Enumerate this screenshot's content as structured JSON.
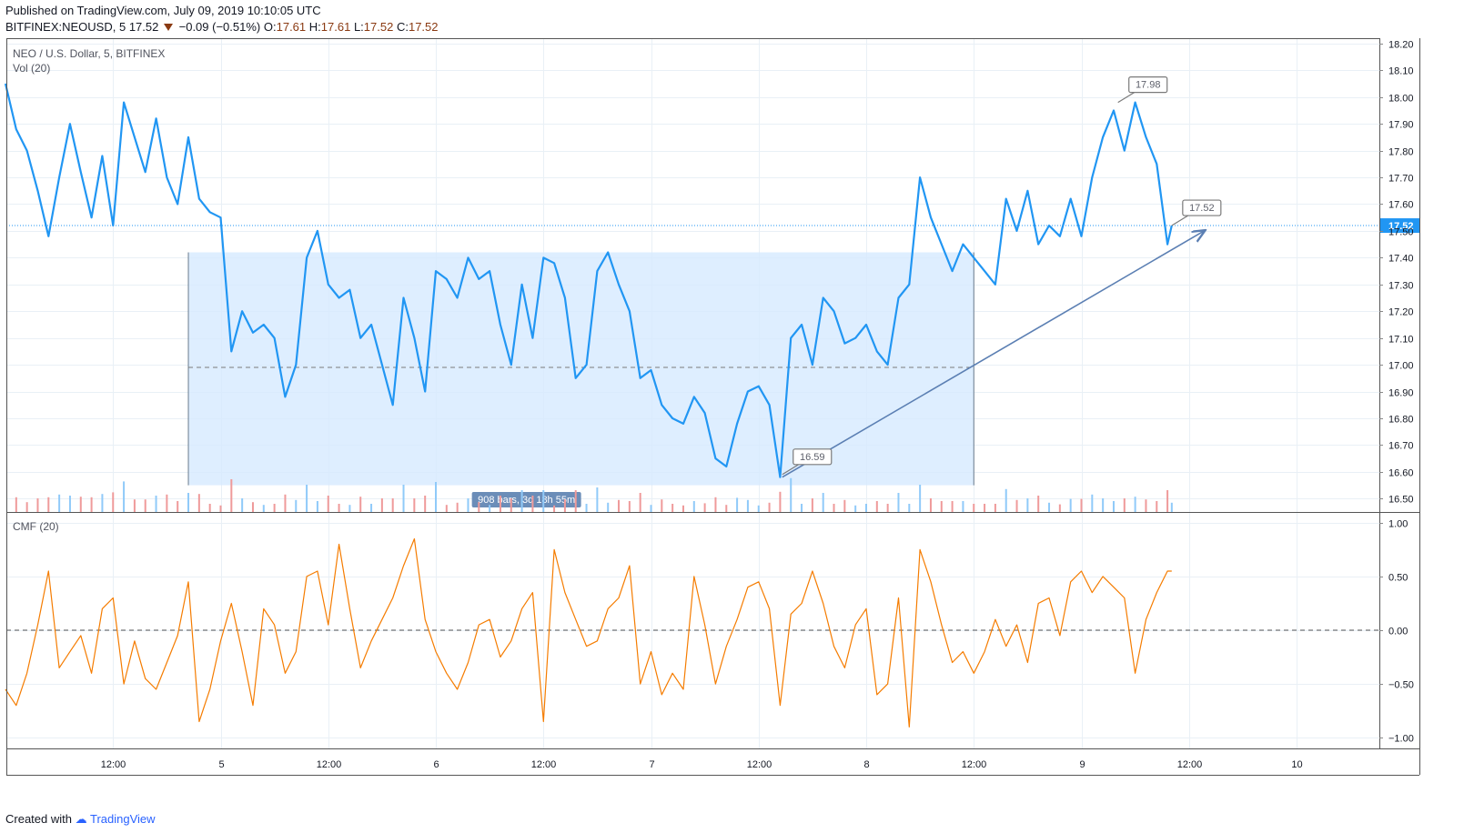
{
  "header": {
    "published": "Published on TradingView.com, July 09, 2019 10:10:05 UTC",
    "symbol_line": "BITFINEX:NEOUSD, 5",
    "last": "17.52",
    "change": "−0.09 (−0.51%)",
    "open_label": "O:",
    "open": "17.61",
    "high_label": "H:",
    "high": "17.61",
    "low_label": "L:",
    "low": "17.52",
    "close_label": "C:",
    "close": "17.52"
  },
  "footer": {
    "created_with": "Created with",
    "brand": "TradingView"
  },
  "colors": {
    "price_line": "#2196f3",
    "cmf_line": "#f57c00",
    "range_fill": "#d6eaff",
    "trendline": "#5b7fb3",
    "vol_up": "#90caf9",
    "vol_down": "#ef9a9a",
    "grid": "#e9f0f6"
  },
  "chart_data": [
    {
      "type": "line",
      "title": "NEO / U.S. Dollar, 5, BITFINEX",
      "indicator_label": "Vol (20)",
      "x_ticks": [
        "12:00",
        "5",
        "12:00",
        "6",
        "12:00",
        "7",
        "12:00",
        "8",
        "12:00",
        "9",
        "12:00",
        "10"
      ],
      "ylim": [
        16.45,
        18.22
      ],
      "y_ticks": [
        "18.20",
        "18.10",
        "18.00",
        "17.90",
        "17.80",
        "17.70",
        "17.60",
        "17.50",
        "17.40",
        "17.30",
        "17.20",
        "17.10",
        "17.00",
        "16.90",
        "16.80",
        "16.70",
        "16.60",
        "16.50"
      ],
      "last_price": 17.52,
      "last_price_label": "17.52",
      "series": [
        {
          "name": "NEOUSD",
          "x_days": [
            4.0,
            4.05,
            4.1,
            4.15,
            4.2,
            4.25,
            4.3,
            4.35,
            4.4,
            4.45,
            4.5,
            4.55,
            4.6,
            4.65,
            4.7,
            4.75,
            4.8,
            4.85,
            4.9,
            4.95,
            5.0,
            5.05,
            5.1,
            5.15,
            5.2,
            5.25,
            5.3,
            5.35,
            5.4,
            5.45,
            5.5,
            5.55,
            5.6,
            5.65,
            5.7,
            5.75,
            5.8,
            5.85,
            5.9,
            5.95,
            6.0,
            6.05,
            6.1,
            6.15,
            6.2,
            6.25,
            6.3,
            6.35,
            6.4,
            6.45,
            6.5,
            6.55,
            6.6,
            6.65,
            6.7,
            6.75,
            6.8,
            6.85,
            6.9,
            6.95,
            7.0,
            7.05,
            7.1,
            7.15,
            7.2,
            7.25,
            7.3,
            7.35,
            7.4,
            7.45,
            7.5,
            7.55,
            7.6,
            7.65,
            7.7,
            7.75,
            7.8,
            7.85,
            7.9,
            7.95,
            8.0,
            8.05,
            8.1,
            8.15,
            8.2,
            8.25,
            8.3,
            8.35,
            8.4,
            8.45,
            8.5,
            8.55,
            8.6,
            8.65,
            8.7,
            8.75,
            8.8,
            8.85,
            8.9,
            8.95,
            9.0,
            9.05,
            9.1,
            9.15,
            9.2,
            9.25,
            9.3,
            9.35,
            9.4,
            9.42
          ],
          "values": [
            18.05,
            17.88,
            17.8,
            17.65,
            17.48,
            17.7,
            17.9,
            17.72,
            17.55,
            17.78,
            17.52,
            17.98,
            17.85,
            17.72,
            17.92,
            17.7,
            17.6,
            17.85,
            17.62,
            17.57,
            17.55,
            17.05,
            17.2,
            17.12,
            17.15,
            17.1,
            16.88,
            17.0,
            17.4,
            17.5,
            17.3,
            17.25,
            17.28,
            17.1,
            17.15,
            17.0,
            16.85,
            17.25,
            17.1,
            16.9,
            17.35,
            17.32,
            17.25,
            17.4,
            17.32,
            17.35,
            17.15,
            17.0,
            17.3,
            17.1,
            17.4,
            17.38,
            17.25,
            16.95,
            17.0,
            17.35,
            17.42,
            17.3,
            17.2,
            16.95,
            16.98,
            16.85,
            16.8,
            16.78,
            16.88,
            16.82,
            16.65,
            16.62,
            16.78,
            16.9,
            16.92,
            16.85,
            16.58,
            17.1,
            17.15,
            17.0,
            17.25,
            17.2,
            17.08,
            17.1,
            17.15,
            17.05,
            17.0,
            17.25,
            17.3,
            17.7,
            17.55,
            17.45,
            17.35,
            17.45,
            17.4,
            17.35,
            17.3,
            17.62,
            17.5,
            17.65,
            17.45,
            17.52,
            17.48,
            17.62,
            17.48,
            17.7,
            17.85,
            17.95,
            17.8,
            17.98,
            17.85,
            17.75,
            17.45,
            17.52
          ]
        }
      ],
      "range_measure": {
        "x_start": 4.85,
        "x_end": 8.5,
        "y_top": 17.42,
        "y_bottom": 16.55,
        "y_mid": 16.99,
        "label": "908 bars, 3d 18h 55m"
      },
      "trendline": {
        "x1": 7.61,
        "y1": 16.58,
        "x2": 9.57,
        "y2": 17.5
      },
      "price_tags": [
        {
          "value": "17.98",
          "x": 9.17,
          "y": 17.98
        },
        {
          "value": "16.59",
          "x": 7.61,
          "y": 16.59
        },
        {
          "value": "17.52",
          "x": 9.42,
          "y": 17.52
        }
      ],
      "volume_note": "volume bars shown along bottom of price pane"
    },
    {
      "type": "line",
      "title": "CMF (20)",
      "ylim": [
        -1.1,
        1.1
      ],
      "y_ticks": [
        "1.00",
        "0.50",
        "0.00",
        "−0.50",
        "−1.00"
      ],
      "zero_line": 0.0,
      "series": [
        {
          "name": "CMF",
          "x_days": [
            4.0,
            4.05,
            4.1,
            4.15,
            4.2,
            4.25,
            4.3,
            4.35,
            4.4,
            4.45,
            4.5,
            4.55,
            4.6,
            4.65,
            4.7,
            4.75,
            4.8,
            4.85,
            4.9,
            4.95,
            5.0,
            5.05,
            5.1,
            5.15,
            5.2,
            5.25,
            5.3,
            5.35,
            5.4,
            5.45,
            5.5,
            5.55,
            5.6,
            5.65,
            5.7,
            5.75,
            5.8,
            5.85,
            5.9,
            5.95,
            6.0,
            6.05,
            6.1,
            6.15,
            6.2,
            6.25,
            6.3,
            6.35,
            6.4,
            6.45,
            6.5,
            6.55,
            6.6,
            6.65,
            6.7,
            6.75,
            6.8,
            6.85,
            6.9,
            6.95,
            7.0,
            7.05,
            7.1,
            7.15,
            7.2,
            7.25,
            7.3,
            7.35,
            7.4,
            7.45,
            7.5,
            7.55,
            7.6,
            7.65,
            7.7,
            7.75,
            7.8,
            7.85,
            7.9,
            7.95,
            8.0,
            8.05,
            8.1,
            8.15,
            8.2,
            8.25,
            8.3,
            8.35,
            8.4,
            8.45,
            8.5,
            8.55,
            8.6,
            8.65,
            8.7,
            8.75,
            8.8,
            8.85,
            8.9,
            8.95,
            9.0,
            9.05,
            9.1,
            9.15,
            9.2,
            9.25,
            9.3,
            9.35,
            9.4,
            9.42
          ],
          "values": [
            -0.55,
            -0.7,
            -0.4,
            0.05,
            0.55,
            -0.35,
            -0.2,
            -0.05,
            -0.4,
            0.2,
            0.3,
            -0.5,
            -0.1,
            -0.45,
            -0.55,
            -0.3,
            -0.05,
            0.45,
            -0.85,
            -0.55,
            -0.1,
            0.25,
            -0.2,
            -0.7,
            0.2,
            0.05,
            -0.4,
            -0.2,
            0.5,
            0.55,
            0.05,
            0.8,
            0.2,
            -0.35,
            -0.1,
            0.1,
            0.3,
            0.6,
            0.85,
            0.1,
            -0.2,
            -0.4,
            -0.55,
            -0.3,
            0.05,
            0.1,
            -0.25,
            -0.1,
            0.2,
            0.35,
            -0.85,
            0.75,
            0.35,
            0.1,
            -0.15,
            -0.1,
            0.2,
            0.3,
            0.6,
            -0.5,
            -0.2,
            -0.6,
            -0.4,
            -0.55,
            0.5,
            0.05,
            -0.5,
            -0.15,
            0.1,
            0.4,
            0.45,
            0.2,
            -0.7,
            0.15,
            0.25,
            0.55,
            0.25,
            -0.15,
            -0.35,
            0.05,
            0.2,
            -0.6,
            -0.5,
            0.3,
            -0.9,
            0.75,
            0.45,
            0.05,
            -0.3,
            -0.2,
            -0.4,
            -0.2,
            0.1,
            -0.15,
            0.05,
            -0.3,
            0.25,
            0.3,
            -0.05,
            0.45,
            0.55,
            0.35,
            0.5,
            0.4,
            0.3,
            -0.4,
            0.1,
            0.35,
            0.55,
            0.55
          ]
        }
      ]
    }
  ]
}
